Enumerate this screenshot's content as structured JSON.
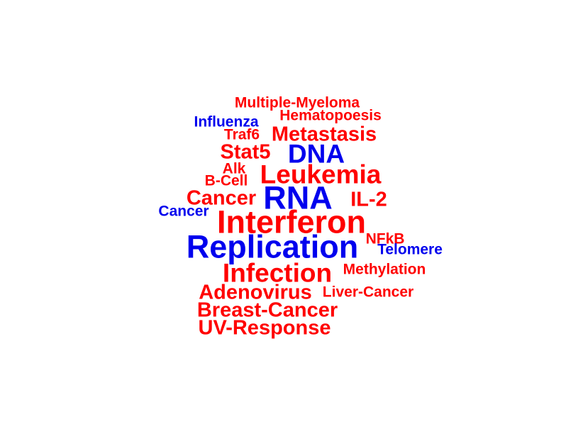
{
  "colors": {
    "red": "#ff0000",
    "blue": "#0000ee"
  },
  "words": [
    {
      "text": "Multiple-Myeloma",
      "color": "red",
      "weight": 1
    },
    {
      "text": "Hematopoesis",
      "color": "red",
      "weight": 1
    },
    {
      "text": "Influenza",
      "color": "blue",
      "weight": 1
    },
    {
      "text": "Traf6",
      "color": "red",
      "weight": 1
    },
    {
      "text": "Metastasis",
      "color": "red",
      "weight": 2
    },
    {
      "text": "Stat5",
      "color": "red",
      "weight": 2
    },
    {
      "text": "DNA",
      "color": "blue",
      "weight": 3
    },
    {
      "text": "Alk",
      "color": "red",
      "weight": 1
    },
    {
      "text": "Leukemia",
      "color": "red",
      "weight": 3
    },
    {
      "text": "B-Cell",
      "color": "red",
      "weight": 1
    },
    {
      "text": "Cancer",
      "color": "red",
      "weight": 2
    },
    {
      "text": "RNA",
      "color": "blue",
      "weight": 4
    },
    {
      "text": "IL-2",
      "color": "red",
      "weight": 2
    },
    {
      "text": "Cancer",
      "color": "blue",
      "weight": 1
    },
    {
      "text": "Interferon",
      "color": "red",
      "weight": 4
    },
    {
      "text": "NFkB",
      "color": "red",
      "weight": 1
    },
    {
      "text": "Replication",
      "color": "blue",
      "weight": 4
    },
    {
      "text": "Telomere",
      "color": "blue",
      "weight": 1
    },
    {
      "text": "Infection",
      "color": "red",
      "weight": 3
    },
    {
      "text": "Methylation",
      "color": "red",
      "weight": 1
    },
    {
      "text": "Adenovirus",
      "color": "red",
      "weight": 2
    },
    {
      "text": "Liver-Cancer",
      "color": "red",
      "weight": 1
    },
    {
      "text": "Breast-Cancer",
      "color": "red",
      "weight": 2
    },
    {
      "text": "UV-Response",
      "color": "red",
      "weight": 2
    }
  ]
}
